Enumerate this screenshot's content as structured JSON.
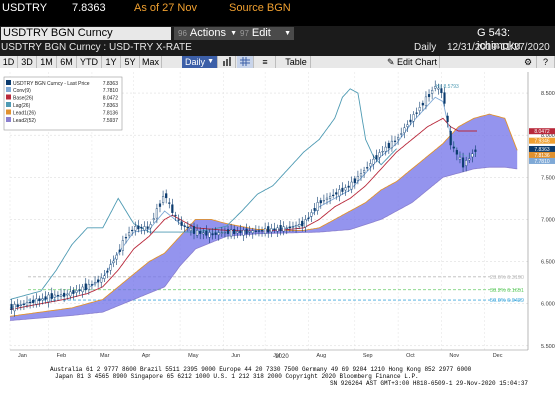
{
  "header": {
    "ticker": "USDTRY",
    "last_price": "7.8363",
    "as_of": "As of 27 Nov",
    "source": "Source BGN",
    "security_name": "USDTRY BGN Curncy",
    "actions_num": "96",
    "actions_label": "Actions",
    "edit_num": "97",
    "edit_label": "Edit",
    "page_label": "G 543: ichimoku",
    "subtitle": "USDTRY BGN Curncy : USD-TRY X-RATE",
    "frequency": "Daily",
    "date_range": "12/31/2019-11/27/2020"
  },
  "toolbar": {
    "ranges": [
      "1D",
      "3D",
      "1M",
      "6M",
      "YTD",
      "1Y",
      "5Y",
      "Max"
    ],
    "period_select": "Daily",
    "table_label": "Table",
    "edit_chart_label": "Edit Chart"
  },
  "legend": {
    "title": "USDTRY BGN Curncy - Last Price",
    "title_value": "7.8363",
    "entries": [
      {
        "name": "Conv(9)",
        "value": "7.7810",
        "color": "#7fa9d6"
      },
      {
        "name": "Base(26)",
        "value": "8.0472",
        "color": "#b8283a"
      },
      {
        "name": "Lag(26)",
        "value": "7.8363",
        "color": "#4e9ab3"
      },
      {
        "name": "Lead1(26)",
        "value": "7.8136",
        "color": "#e0912f"
      },
      {
        "name": "Lead2(52)",
        "value": "7.5937",
        "color": "#8a7fcf"
      }
    ]
  },
  "annotations": {
    "high_label": "Hi: 8.5793",
    "fib_labels": [
      "23.6% 6.3190",
      "38.2% 6.1651",
      "50.0% 6.0429"
    ]
  },
  "footer": {
    "line1": "Australia 61 2 9777 8600  Brazil 5511 2395 9000  Europe 44 20 7330 7500  Germany 49 69 9204 1210  Hong Kong 852 2977 6000",
    "line2": "Japan 81 3 4565 8900        Singapore 65 6212 1000        U.S. 1 212 318 2000        Copyright 2020 Bloomberg Finance L.P.",
    "line3": "SN 926264 AST  GMT+3:00 H818-6509-1 29-Nov-2020 15:04:37"
  },
  "chart_data": {
    "type": "line",
    "title": "USDTRY BGN Curncy : USD-TRY X-RATE",
    "xlabel": "2020",
    "ylabel": "",
    "x_ticks": [
      "Jan",
      "Feb",
      "Mar",
      "Apr",
      "May",
      "Jun",
      "Jul",
      "Aug",
      "Sep",
      "Oct",
      "Nov",
      "Dec"
    ],
    "y_ticks": [
      5.5,
      6.0,
      6.5,
      7.0,
      7.5,
      8.0,
      8.5
    ],
    "ylim": [
      5.45,
      8.75
    ],
    "grid": true,
    "legend_position": "top-left",
    "price_label_values": [
      8.0472,
      7.9346,
      7.8363,
      7.8136,
      7.781
    ],
    "knots": {
      "price": [
        [
          0,
          5.95
        ],
        [
          10,
          6.0
        ],
        [
          20,
          6.05
        ],
        [
          30,
          6.1
        ],
        [
          35,
          6.1
        ],
        [
          40,
          6.13
        ],
        [
          50,
          6.2
        ],
        [
          60,
          6.3
        ],
        [
          70,
          6.6
        ],
        [
          75,
          6.8
        ],
        [
          80,
          6.9
        ],
        [
          90,
          6.9
        ],
        [
          100,
          7.3
        ],
        [
          105,
          7.1
        ],
        [
          110,
          6.95
        ],
        [
          120,
          6.85
        ],
        [
          130,
          6.82
        ],
        [
          140,
          6.85
        ],
        [
          150,
          6.85
        ],
        [
          160,
          6.86
        ],
        [
          170,
          6.88
        ],
        [
          180,
          6.9
        ],
        [
          190,
          6.95
        ],
        [
          200,
          7.2
        ],
        [
          210,
          7.3
        ],
        [
          220,
          7.4
        ],
        [
          230,
          7.6
        ],
        [
          240,
          7.8
        ],
        [
          250,
          7.95
        ],
        [
          260,
          8.2
        ],
        [
          270,
          8.45
        ],
        [
          275,
          8.58
        ],
        [
          280,
          8.5
        ],
        [
          285,
          7.9
        ],
        [
          290,
          7.75
        ],
        [
          293,
          7.65
        ],
        [
          296,
          7.7
        ],
        [
          300,
          7.8
        ],
        [
          302,
          7.84
        ]
      ],
      "conv": [
        [
          0,
          5.95
        ],
        [
          20,
          6.05
        ],
        [
          35,
          6.1
        ],
        [
          50,
          6.18
        ],
        [
          60,
          6.3
        ],
        [
          70,
          6.6
        ],
        [
          80,
          6.85
        ],
        [
          90,
          6.88
        ],
        [
          100,
          7.1
        ],
        [
          110,
          6.95
        ],
        [
          120,
          6.85
        ],
        [
          140,
          6.85
        ],
        [
          160,
          6.86
        ],
        [
          180,
          6.9
        ],
        [
          190,
          6.95
        ],
        [
          200,
          7.15
        ],
        [
          210,
          7.25
        ],
        [
          220,
          7.35
        ],
        [
          230,
          7.55
        ],
        [
          240,
          7.75
        ],
        [
          250,
          7.9
        ],
        [
          260,
          8.15
        ],
        [
          270,
          8.35
        ],
        [
          275,
          8.45
        ],
        [
          280,
          8.4
        ],
        [
          285,
          8.0
        ],
        [
          290,
          7.78
        ],
        [
          296,
          7.75
        ],
        [
          302,
          7.78
        ]
      ],
      "base": [
        [
          0,
          5.93
        ],
        [
          20,
          6.0
        ],
        [
          35,
          6.05
        ],
        [
          50,
          6.12
        ],
        [
          60,
          6.2
        ],
        [
          70,
          6.4
        ],
        [
          80,
          6.65
        ],
        [
          90,
          6.8
        ],
        [
          100,
          7.0
        ],
        [
          105,
          7.05
        ],
        [
          110,
          7.0
        ],
        [
          120,
          6.9
        ],
        [
          140,
          6.87
        ],
        [
          160,
          6.86
        ],
        [
          180,
          6.88
        ],
        [
          190,
          6.9
        ],
        [
          200,
          7.0
        ],
        [
          210,
          7.15
        ],
        [
          220,
          7.25
        ],
        [
          230,
          7.4
        ],
        [
          240,
          7.6
        ],
        [
          250,
          7.8
        ],
        [
          260,
          7.95
        ],
        [
          270,
          8.1
        ],
        [
          275,
          8.15
        ],
        [
          280,
          8.2
        ],
        [
          285,
          8.1
        ],
        [
          290,
          8.05
        ],
        [
          296,
          8.05
        ],
        [
          302,
          8.05
        ]
      ],
      "lag": [
        [
          0,
          6.05
        ],
        [
          10,
          6.1
        ],
        [
          20,
          6.15
        ],
        [
          30,
          6.4
        ],
        [
          40,
          6.7
        ],
        [
          50,
          6.9
        ],
        [
          60,
          6.9
        ],
        [
          70,
          7.25
        ],
        [
          75,
          7.1
        ],
        [
          80,
          6.95
        ],
        [
          90,
          6.85
        ],
        [
          110,
          6.85
        ],
        [
          120,
          6.85
        ],
        [
          130,
          6.88
        ],
        [
          140,
          6.92
        ],
        [
          150,
          7.1
        ],
        [
          160,
          7.3
        ],
        [
          170,
          7.4
        ],
        [
          180,
          7.6
        ],
        [
          190,
          7.8
        ],
        [
          200,
          7.95
        ],
        [
          210,
          8.2
        ],
        [
          215,
          8.45
        ],
        [
          220,
          8.55
        ],
        [
          225,
          8.5
        ],
        [
          230,
          7.95
        ],
        [
          235,
          7.75
        ],
        [
          240,
          7.65
        ],
        [
          250,
          7.84
        ]
      ],
      "lead1": [
        [
          0,
          5.85
        ],
        [
          20,
          5.9
        ],
        [
          40,
          5.95
        ],
        [
          60,
          6.05
        ],
        [
          70,
          6.2
        ],
        [
          80,
          6.35
        ],
        [
          90,
          6.5
        ],
        [
          100,
          6.6
        ],
        [
          110,
          6.8
        ],
        [
          120,
          7.0
        ],
        [
          130,
          7.0
        ],
        [
          140,
          6.95
        ],
        [
          160,
          6.88
        ],
        [
          170,
          6.88
        ],
        [
          180,
          6.87
        ],
        [
          190,
          6.87
        ],
        [
          200,
          6.9
        ],
        [
          210,
          7.0
        ],
        [
          220,
          7.1
        ],
        [
          230,
          7.2
        ],
        [
          240,
          7.35
        ],
        [
          250,
          7.45
        ],
        [
          260,
          7.6
        ],
        [
          270,
          7.75
        ],
        [
          280,
          7.9
        ],
        [
          290,
          8.1
        ],
        [
          300,
          8.2
        ],
        [
          310,
          8.25
        ],
        [
          320,
          8.2
        ],
        [
          328,
          7.82
        ]
      ],
      "lead2": [
        [
          0,
          5.8
        ],
        [
          20,
          5.83
        ],
        [
          40,
          5.86
        ],
        [
          60,
          5.9
        ],
        [
          80,
          6.05
        ],
        [
          100,
          6.2
        ],
        [
          110,
          6.45
        ],
        [
          120,
          6.65
        ],
        [
          140,
          6.8
        ],
        [
          160,
          6.83
        ],
        [
          180,
          6.84
        ],
        [
          200,
          6.85
        ],
        [
          220,
          6.88
        ],
        [
          240,
          7.0
        ],
        [
          250,
          7.1
        ],
        [
          260,
          7.2
        ],
        [
          270,
          7.35
        ],
        [
          280,
          7.5
        ],
        [
          290,
          7.55
        ],
        [
          300,
          7.6
        ],
        [
          310,
          7.62
        ],
        [
          320,
          7.62
        ],
        [
          328,
          7.6
        ]
      ]
    }
  },
  "colors": {
    "price": "#0b3b6e",
    "conv": "#7fa9d6",
    "base": "#b8283a",
    "lag": "#4e9ab3",
    "lead1": "#e0912f",
    "lead2": "#8a7fcf",
    "cloud": "#7070e8",
    "accent": "#f0a030"
  }
}
